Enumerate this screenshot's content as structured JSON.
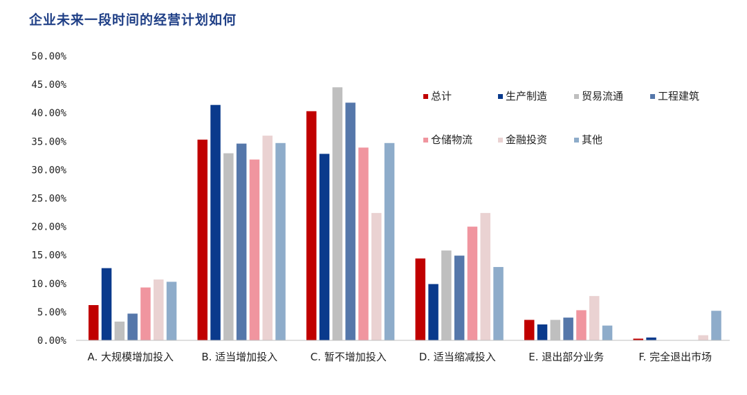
{
  "chart_data": {
    "type": "bar",
    "title": "企业未来一段时间的经营计划如何",
    "categories": [
      "A. 大规模增加投入",
      "B. 适当增加投入",
      "C. 暂不增加投入",
      "D. 适当缩减投入",
      "E. 退出部分业务",
      "F. 完全退出市场"
    ],
    "yticks": [
      "0.00%",
      "5.00%",
      "10.00%",
      "15.00%",
      "20.00%",
      "25.00%",
      "30.00%",
      "35.00%",
      "40.00%",
      "45.00%",
      "50.00%"
    ],
    "ylim": [
      0,
      50
    ],
    "grid": false,
    "legend_position": "top-right",
    "series": [
      {
        "name": "总计",
        "color": "#c00000",
        "values": [
          6.2,
          35.3,
          40.3,
          14.4,
          3.6,
          0.3
        ]
      },
      {
        "name": "生产制造",
        "color": "#0a3a8c",
        "values": [
          12.7,
          41.4,
          32.8,
          9.9,
          2.8,
          0.5
        ]
      },
      {
        "name": "贸易流通",
        "color": "#bfbfbf",
        "values": [
          3.3,
          32.9,
          44.5,
          15.8,
          3.6,
          0
        ]
      },
      {
        "name": "工程建筑",
        "color": "#5577aa",
        "values": [
          4.7,
          34.6,
          41.8,
          14.9,
          4.0,
          0
        ]
      },
      {
        "name": "仓储物流",
        "color": "#f0959f",
        "values": [
          9.3,
          31.8,
          33.9,
          20.0,
          5.3,
          0
        ]
      },
      {
        "name": "金融投资",
        "color": "#ead2d2",
        "values": [
          10.7,
          36.0,
          22.4,
          22.4,
          7.8,
          0.9
        ]
      },
      {
        "name": "其他",
        "color": "#8eacca",
        "values": [
          10.3,
          34.7,
          34.7,
          12.9,
          2.6,
          5.2
        ]
      }
    ]
  }
}
